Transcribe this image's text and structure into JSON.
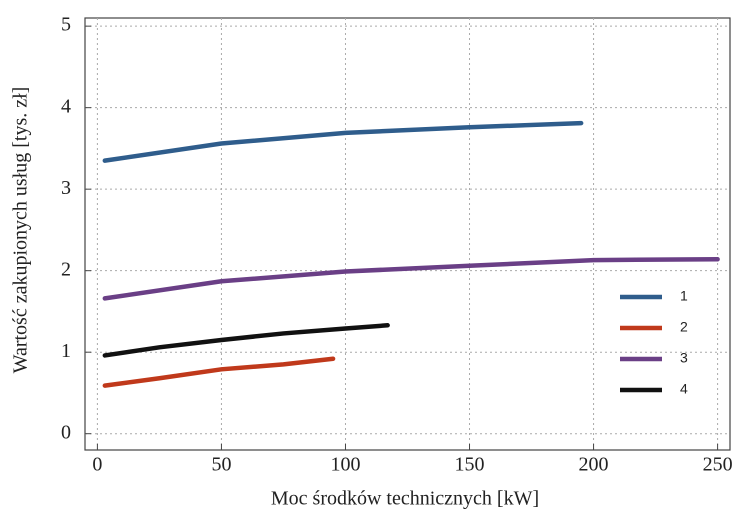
{
  "chart_data": {
    "type": "line",
    "x_label": "Moc środków technicznych [kW]",
    "y_label": "Wartość zakupionych usług [tys. zł]",
    "xlim": [
      -5,
      255
    ],
    "ylim": [
      -0.2,
      5.1
    ],
    "xticks": [
      0,
      50,
      100,
      150,
      200,
      250
    ],
    "yticks": [
      0,
      1,
      2,
      3,
      4,
      5
    ],
    "grid": true,
    "legend": "lower right",
    "series": [
      {
        "name": "1",
        "color": "#2f5d8c",
        "x": [
          3,
          50,
          100,
          150,
          195
        ],
        "values": [
          3.35,
          3.56,
          3.69,
          3.76,
          3.81
        ]
      },
      {
        "name": "2",
        "color": "#c0391b",
        "x": [
          3,
          25,
          50,
          75,
          95
        ],
        "values": [
          0.59,
          0.68,
          0.79,
          0.85,
          0.92
        ]
      },
      {
        "name": "3",
        "color": "#6a3f86",
        "x": [
          3,
          50,
          100,
          150,
          200,
          250
        ],
        "values": [
          1.66,
          1.87,
          1.99,
          2.06,
          2.13,
          2.14
        ]
      },
      {
        "name": "4",
        "color": "#111111",
        "x": [
          3,
          25,
          50,
          75,
          100,
          117
        ],
        "values": [
          0.96,
          1.06,
          1.15,
          1.23,
          1.29,
          1.33
        ]
      }
    ]
  }
}
